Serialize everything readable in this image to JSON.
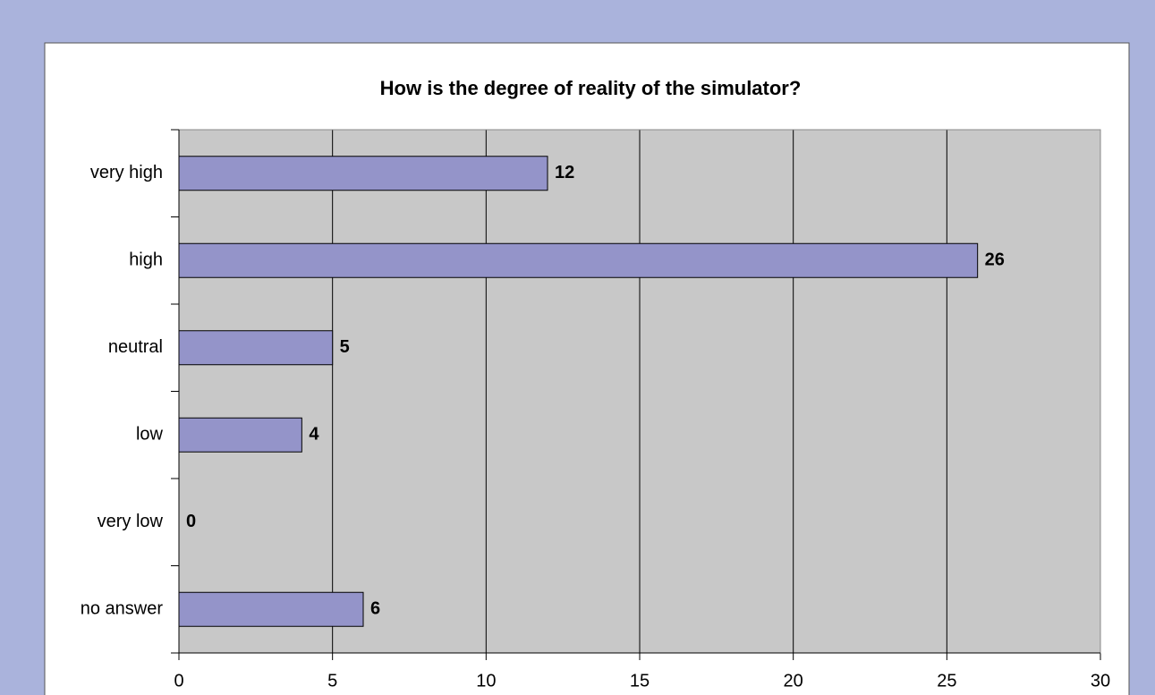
{
  "chart_data": {
    "type": "bar",
    "orientation": "horizontal",
    "title": "How is the degree of reality of the simulator?",
    "categories": [
      "very high",
      "high",
      "neutral",
      "low",
      "very low",
      "no answer"
    ],
    "values": [
      12,
      26,
      5,
      4,
      0,
      6
    ],
    "color": "#9494c9",
    "xlim": [
      0,
      30
    ],
    "xticks": [
      0,
      5,
      10,
      15,
      20,
      25,
      30
    ],
    "grid": true
  }
}
